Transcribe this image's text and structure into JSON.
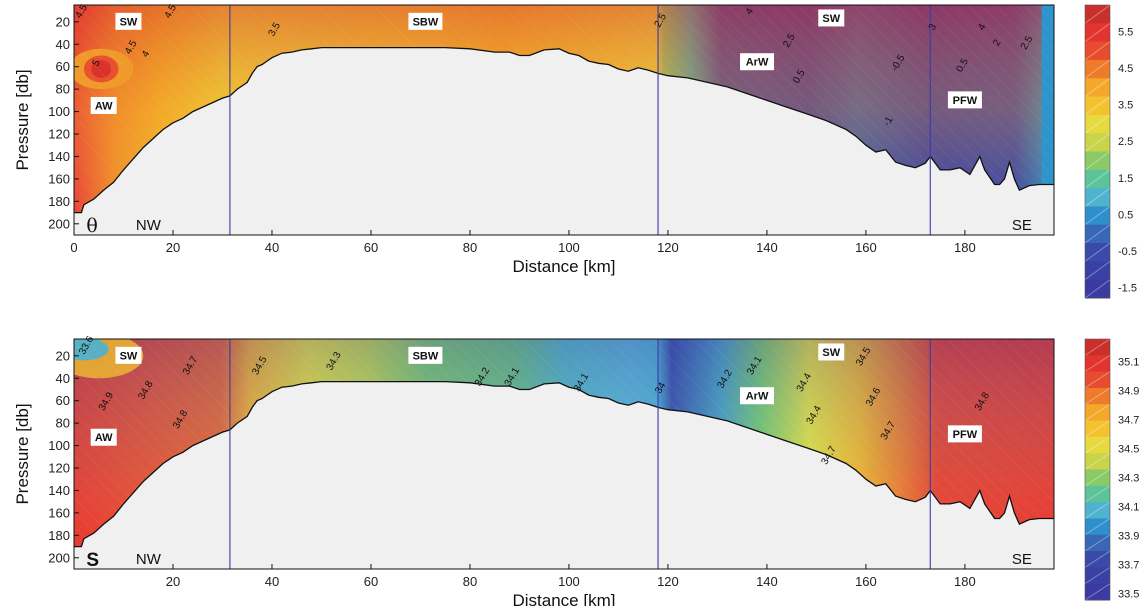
{
  "chart_data": [
    {
      "type": "heatmap",
      "variable_symbol": "θ",
      "xlabel": "Distance [km]",
      "ylabel": "Pressure [db]",
      "xlim": [
        0,
        198
      ],
      "ylim": [
        210,
        5
      ],
      "xticks": [
        0,
        20,
        40,
        60,
        80,
        100,
        120,
        140,
        160,
        180
      ],
      "yticks": [
        20,
        40,
        60,
        80,
        100,
        120,
        140,
        160,
        180,
        200
      ],
      "colorbar_ticks": [
        "5.5",
        "4.5",
        "3.5",
        "2.5",
        "1.5",
        "0.5",
        "-0.5",
        "-1.5"
      ],
      "station_lines_km": [
        31.5,
        118,
        173
      ],
      "corner_left": "NW",
      "corner_right": "SE",
      "water_masses": [
        {
          "label": "SW",
          "x": 11,
          "p": 20
        },
        {
          "label": "SBW",
          "x": 71,
          "p": 20
        },
        {
          "label": "SW",
          "x": 153,
          "p": 17
        },
        {
          "label": "AW",
          "x": 6,
          "p": 95
        },
        {
          "label": "ArW",
          "x": 138,
          "p": 56
        },
        {
          "label": "PFW",
          "x": 180,
          "p": 90
        }
      ],
      "contour_labels": [
        {
          "text": "4.5",
          "x": 2,
          "p": 12
        },
        {
          "text": "4.5",
          "x": 20,
          "p": 12
        },
        {
          "text": "5",
          "x": 5,
          "p": 58
        },
        {
          "text": "4.5",
          "x": 12,
          "p": 44
        },
        {
          "text": "4",
          "x": 15,
          "p": 50
        },
        {
          "text": "3.5",
          "x": 41,
          "p": 28
        },
        {
          "text": "2.5",
          "x": 119,
          "p": 20
        },
        {
          "text": "4",
          "x": 137,
          "p": 12
        },
        {
          "text": "2.5",
          "x": 145,
          "p": 38
        },
        {
          "text": "3",
          "x": 174,
          "p": 26
        },
        {
          "text": "4",
          "x": 184,
          "p": 26
        },
        {
          "text": "2",
          "x": 187,
          "p": 40
        },
        {
          "text": "2.5",
          "x": 193,
          "p": 40
        },
        {
          "text": "0.5",
          "x": 147,
          "p": 70
        },
        {
          "text": "-0.5",
          "x": 167,
          "p": 58
        },
        {
          "text": "0.5",
          "x": 180,
          "p": 60
        },
        {
          "text": "-1",
          "x": 165,
          "p": 110
        }
      ]
    },
    {
      "type": "heatmap",
      "variable_symbol": "S",
      "xlabel": "Distance [km]",
      "ylabel": "Pressure [db]",
      "xlim": [
        0,
        198
      ],
      "ylim": [
        210,
        5
      ],
      "xticks": [
        20,
        40,
        60,
        80,
        100,
        120,
        140,
        160,
        180
      ],
      "yticks": [
        20,
        40,
        60,
        80,
        100,
        120,
        140,
        160,
        180,
        200
      ],
      "colorbar_ticks": [
        "35.1",
        "34.9",
        "34.7",
        "34.5",
        "34.3",
        "34.1",
        "33.9",
        "33.7",
        "33.5"
      ],
      "station_lines_km": [
        31.5,
        118,
        173
      ],
      "corner_left": "NW",
      "corner_right": "SE",
      "water_masses": [
        {
          "label": "SW",
          "x": 11,
          "p": 20
        },
        {
          "label": "SBW",
          "x": 71,
          "p": 20
        },
        {
          "label": "SW",
          "x": 153,
          "p": 17
        },
        {
          "label": "AW",
          "x": 6,
          "p": 93
        },
        {
          "label": "ArW",
          "x": 138,
          "p": 56
        },
        {
          "label": "PFW",
          "x": 180,
          "p": 90
        }
      ],
      "contour_labels": [
        {
          "text": "33.6",
          "x": 3,
          "p": 12
        },
        {
          "text": "34.7",
          "x": 24,
          "p": 30
        },
        {
          "text": "34.5",
          "x": 38,
          "p": 30
        },
        {
          "text": "34.3",
          "x": 53,
          "p": 26
        },
        {
          "text": "34.2",
          "x": 83,
          "p": 40
        },
        {
          "text": "34.1",
          "x": 89,
          "p": 40
        },
        {
          "text": "34.1",
          "x": 103,
          "p": 45
        },
        {
          "text": "34",
          "x": 119,
          "p": 50
        },
        {
          "text": "34.2",
          "x": 132,
          "p": 42
        },
        {
          "text": "34.1",
          "x": 138,
          "p": 30
        },
        {
          "text": "34.4",
          "x": 148,
          "p": 45
        },
        {
          "text": "34.4",
          "x": 150,
          "p": 74
        },
        {
          "text": "34.5",
          "x": 160,
          "p": 22
        },
        {
          "text": "34.6",
          "x": 162,
          "p": 58
        },
        {
          "text": "34.7",
          "x": 165,
          "p": 88
        },
        {
          "text": "34.7",
          "x": 153,
          "p": 110
        },
        {
          "text": "34.8",
          "x": 184,
          "p": 62
        },
        {
          "text": "34.9",
          "x": 7,
          "p": 62
        },
        {
          "text": "34.8",
          "x": 15,
          "p": 52
        },
        {
          "text": "34.8",
          "x": 22,
          "p": 78
        }
      ]
    }
  ]
}
